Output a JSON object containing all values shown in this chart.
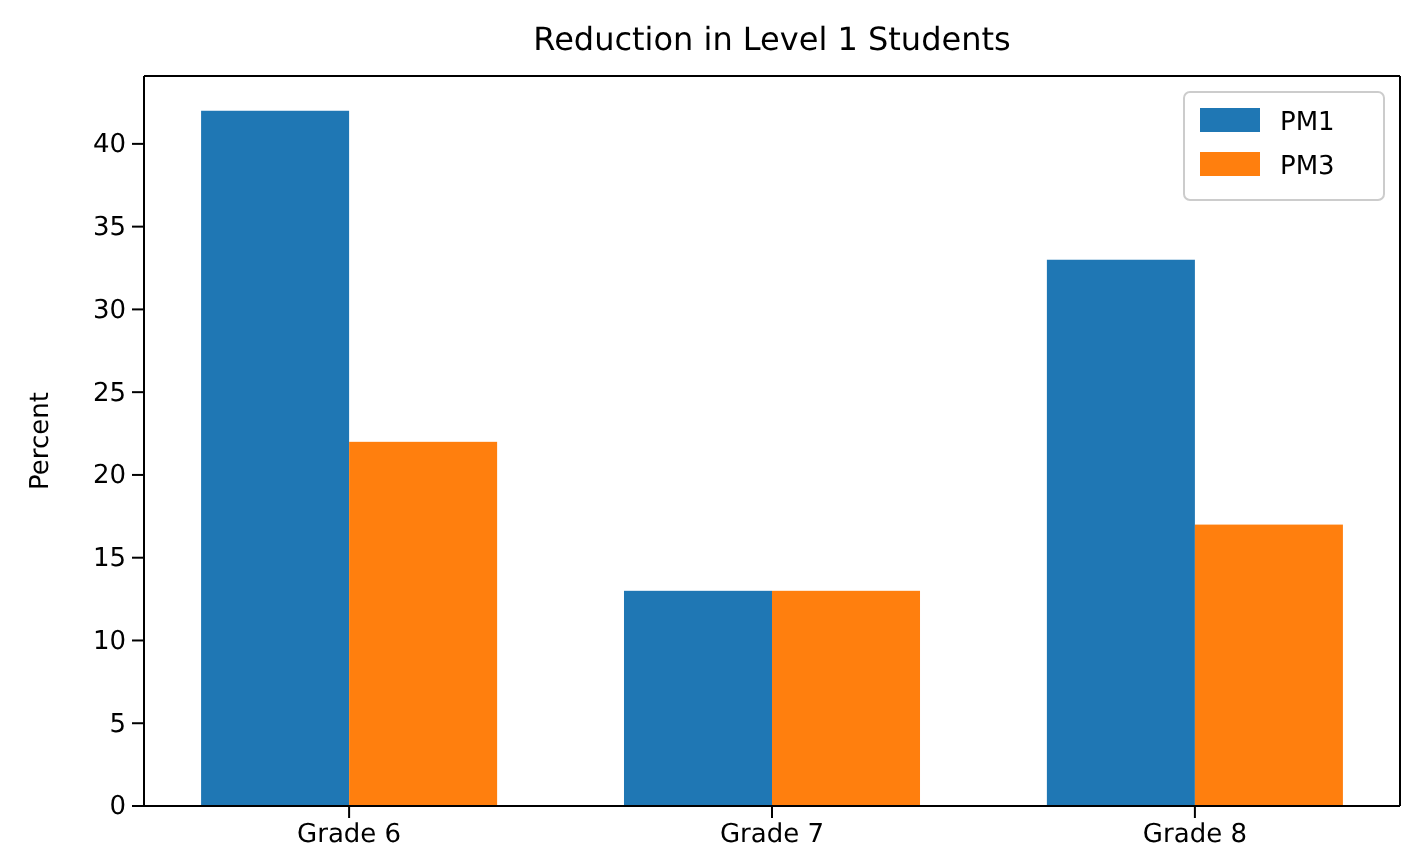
{
  "chart_data": {
    "type": "bar",
    "title": "Reduction in Level 1 Students",
    "ylabel": "Percent",
    "categories": [
      "Grade 6",
      "Grade 7",
      "Grade 8"
    ],
    "series": [
      {
        "name": "PM1",
        "color": "#1f77b4",
        "values": [
          42,
          13,
          33
        ]
      },
      {
        "name": "PM3",
        "color": "#ff7f0e",
        "values": [
          22,
          13,
          17
        ]
      }
    ],
    "ylim": [
      0,
      44.1
    ],
    "yticks": [
      0,
      5,
      10,
      15,
      20,
      25,
      30,
      35,
      40
    ],
    "grid": false,
    "legend": "top right"
  }
}
